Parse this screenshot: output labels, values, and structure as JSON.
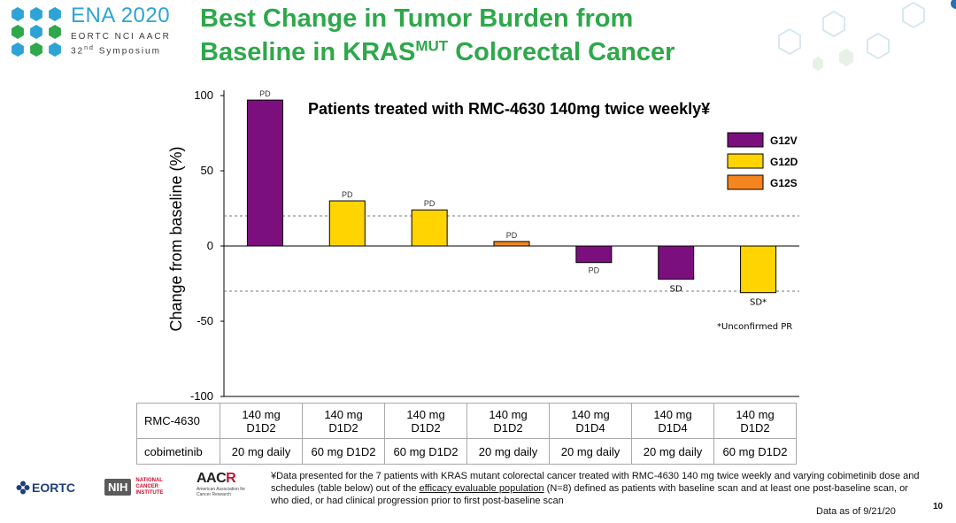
{
  "header": {
    "ena_title": "ENA 2020",
    "ena_line1": "EORTC NCI AACR",
    "ena_line2_pre": "32",
    "ena_line2_sup": "nd",
    "ena_line2_post": " Symposium",
    "title_line1": "Best Change in Tumor Burden from",
    "title_line2_pre": "Baseline in KRAS",
    "title_line2_sup": "MUT",
    "title_line2_post": " Colorectal Cancer",
    "title_color": "#2ea84a",
    "ena_color": "#2ea3d6"
  },
  "chart_data": {
    "type": "bar",
    "title": "Patients treated with RMC-4630 140mg twice weekly¥",
    "ylabel": "Change from baseline (%)",
    "xlabel": "",
    "ylim": [
      -100,
      100
    ],
    "yticks": [
      100,
      50,
      0,
      -50,
      -100
    ],
    "reference_lines": [
      20,
      -30
    ],
    "values": [
      97,
      30,
      24,
      3,
      -11,
      -22,
      -31
    ],
    "bar_labels": [
      "PD",
      "PD",
      "PD",
      "PD",
      "PD",
      "SD",
      "SD*"
    ],
    "mutations": [
      "G12V",
      "G12D",
      "G12D",
      "G12S",
      "G12V",
      "G12V",
      "G12D"
    ],
    "legend": [
      {
        "name": "G12V",
        "color": "#7b0f7e"
      },
      {
        "name": "G12D",
        "color": "#ffd400"
      },
      {
        "name": "G12S",
        "color": "#f5851f"
      }
    ],
    "legend_position": "top-right",
    "annotation": "*Unconfirmed PR",
    "grid": false
  },
  "table": {
    "row1_header": "RMC-4630",
    "row2_header": "cobimetinib",
    "row1": [
      {
        "l1": "140 mg",
        "l2": "D1D2"
      },
      {
        "l1": "140 mg",
        "l2": "D1D2"
      },
      {
        "l1": "140 mg",
        "l2": "D1D2"
      },
      {
        "l1": "140 mg",
        "l2": "D1D2"
      },
      {
        "l1": "140 mg",
        "l2": "D1D4"
      },
      {
        "l1": "140 mg",
        "l2": "D1D4"
      },
      {
        "l1": "140 mg",
        "l2": "D1D2"
      }
    ],
    "row2": [
      "20 mg daily",
      "60 mg D1D2",
      "60 mg D1D2",
      "20 mg daily",
      "20 mg daily",
      "20 mg daily",
      "60 mg D1D2"
    ]
  },
  "footer": {
    "eortc": "EORTC",
    "nih": "NIH",
    "nci": "NATIONAL CANCER INSTITUTE",
    "aacr_pre": "AAC",
    "aacr_r": "R",
    "aacr_sub": "American Association for Cancer Research",
    "footnote_pre": "¥Data presented for the 7 patients with KRAS mutant colorectal cancer treated with RMC-4630 140 mg twice weekly and varying cobimetinib dose and schedules (table below) out of the ",
    "footnote_ul": "efficacy evaluable population",
    "footnote_post": " (N=8) defined as patients with baseline scan and at least one post-baseline scan, or who died, or had clinical progression prior to first post-baseline scan",
    "data_date": "Data as of 9/21/20",
    "page_number": "10"
  }
}
